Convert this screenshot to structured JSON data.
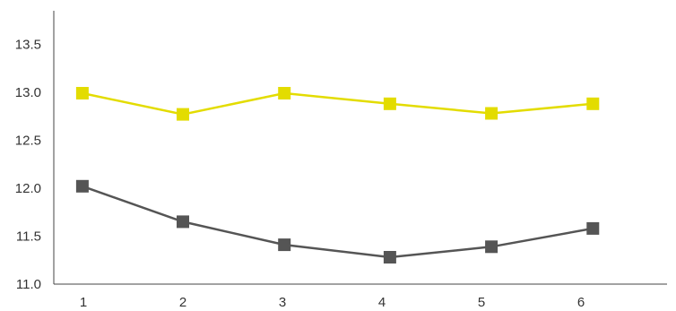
{
  "chart_data": {
    "type": "line",
    "title": "",
    "xlabel": "",
    "ylabel": "",
    "x_ticks": [
      "1",
      "2",
      "3",
      "4",
      "5",
      "6"
    ],
    "y_ticks": [
      "11.0",
      "11.5",
      "12.0",
      "12.5",
      "13.0",
      "13.5"
    ],
    "ylim": [
      11.0,
      13.85
    ],
    "grid": false,
    "legend": "none",
    "series": [
      {
        "color": "#e3dc00",
        "marker": "square",
        "x": [
          0.99,
          2.0,
          3.02,
          4.08,
          5.1,
          6.12
        ],
        "values": [
          12.99,
          12.77,
          12.99,
          12.88,
          12.78,
          12.88
        ]
      },
      {
        "color": "#555555",
        "marker": "square",
        "x": [
          0.99,
          2.0,
          3.02,
          4.08,
          5.1,
          6.12
        ],
        "values": [
          12.02,
          11.65,
          11.41,
          11.28,
          11.39,
          11.58
        ]
      }
    ]
  }
}
